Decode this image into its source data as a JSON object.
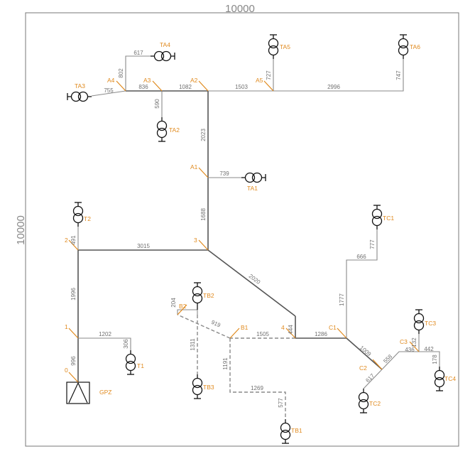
{
  "frame": {
    "width_label": "10000",
    "height_label": "10000"
  },
  "source": {
    "label": "GPZ"
  },
  "nodes": {
    "n0": "0",
    "n1": "1",
    "n2": "2",
    "n3": "3",
    "n4": "4",
    "A1": "A1",
    "A2": "A2",
    "A3": "A3",
    "A4": "A4",
    "A5": "A5",
    "B1": "B1",
    "B2": "B2",
    "C1": "C1",
    "C2": "C2",
    "C3": "C3"
  },
  "transformers": {
    "T1": "T1",
    "T2": "T2",
    "TA1": "TA1",
    "TA2": "TA2",
    "TA3": "TA3",
    "TA4": "TA4",
    "TA5": "TA5",
    "TA6": "TA6",
    "TB1": "TB1",
    "TB2": "TB2",
    "TB3": "TB3",
    "TC1": "TC1",
    "TC2": "TC2",
    "TC3": "TC3",
    "TC4": "TC4"
  },
  "lengths": {
    "s0_1": "996",
    "s1_2": "1996",
    "s1_T1": "1202",
    "s1_T1b": "306",
    "s2_T2": "491",
    "s2_3": "3015",
    "s3_A1": "1688",
    "sA1_A2": "2023",
    "sA1_TA1": "739",
    "sA2_A3": "1082",
    "sA3_TA2": "590",
    "sA3_A4": "836",
    "sA4_TA3": "755",
    "sA4_TA4a": "802",
    "sA4_TA4b": "617",
    "sA2_A5": "1503",
    "sA5_TA5": "727",
    "sA5_TA6a": "2996",
    "sA5_TA6b": "747",
    "s3_4": "2020",
    "s4_TB2": "444",
    "s4_B1": "1505",
    "sB1_B2": "919",
    "sB2_TB2": "204",
    "sB2_TB3": "1311",
    "sB1_TB1a": "1191",
    "sB1_TB1b": "1269",
    "sB1_TB1c": "577",
    "s4_C1": "1286",
    "sC1_TC1a": "1777",
    "sC1_TC1b": "666",
    "sC1_TC1c": "777",
    "sC1_C2": "1009",
    "sC2_TC2": "617",
    "sC2_C3": "558",
    "sC3_TC3": "132",
    "sC3_C3b": "436",
    "sC3_TC4a": "442",
    "sC3_TC4b": "178"
  }
}
